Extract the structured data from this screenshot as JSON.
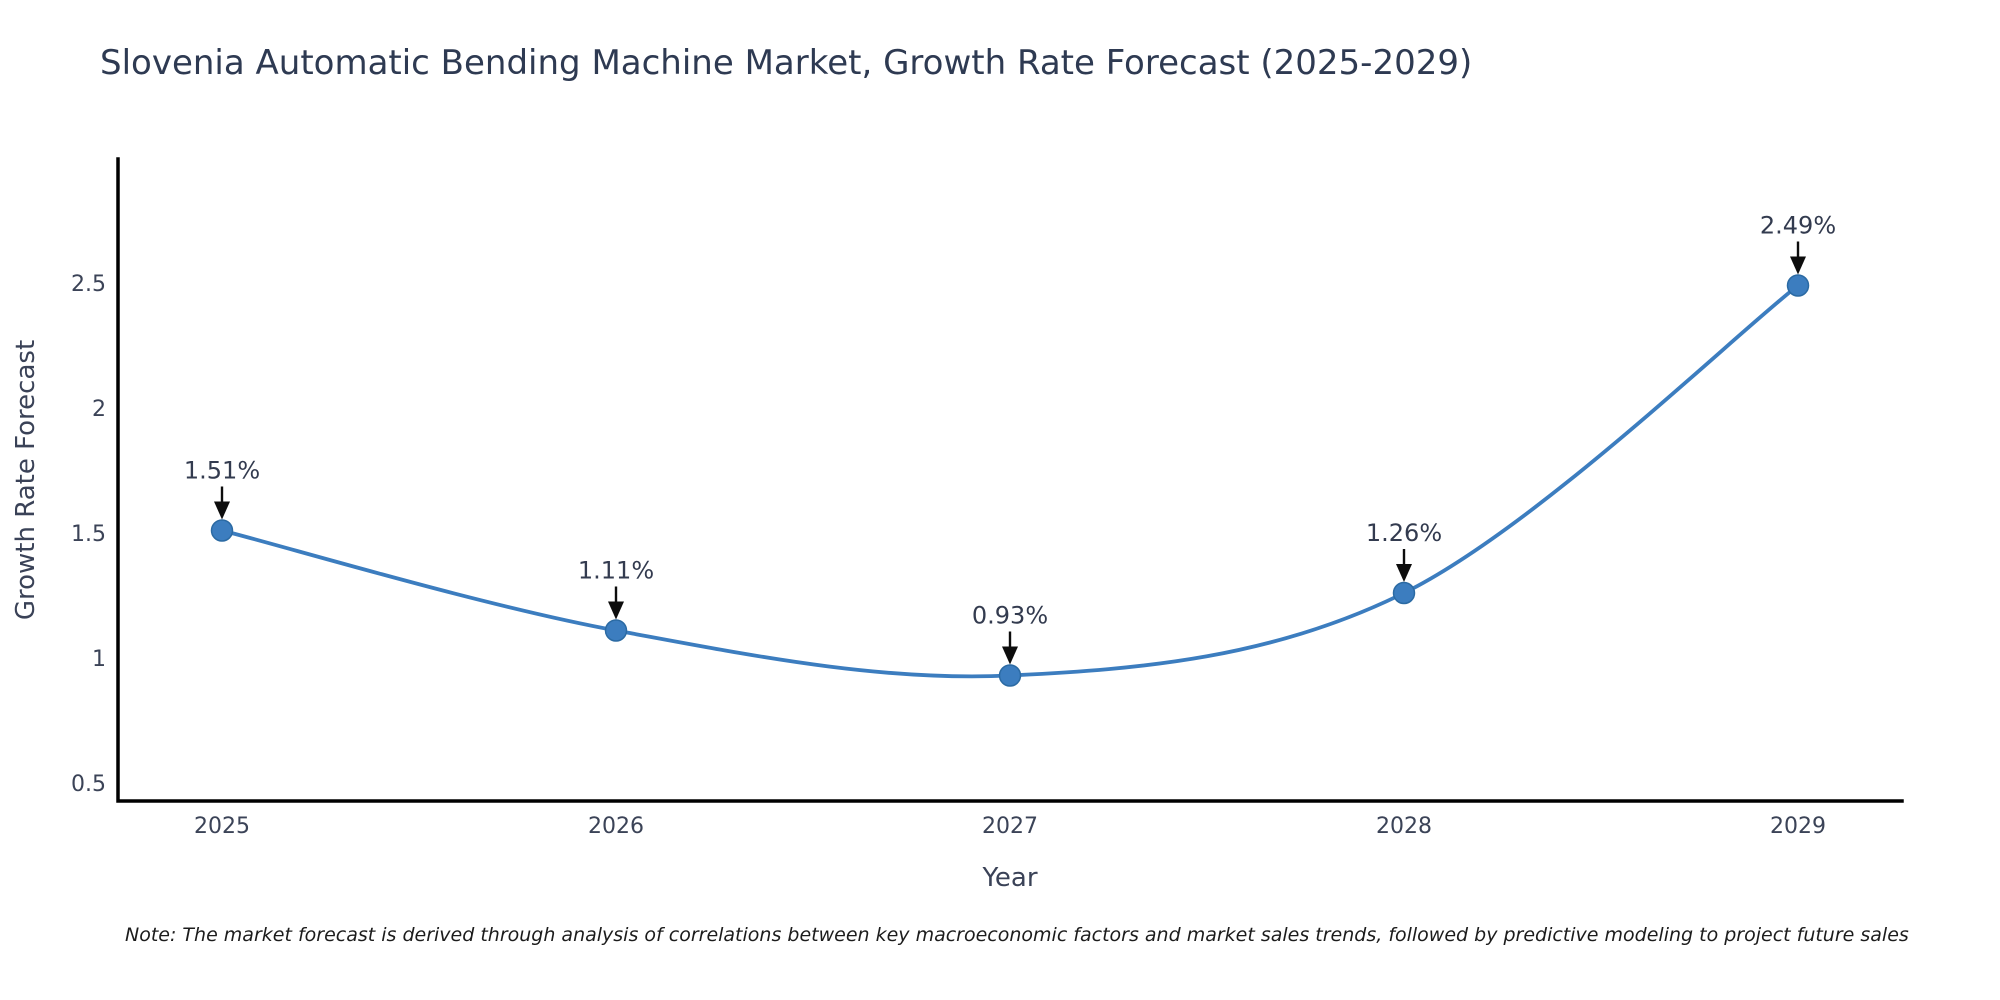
{
  "chart_data": {
    "type": "line",
    "title": "Slovenia Automatic Bending Machine Market, Growth Rate Forecast (2025-2029)",
    "categories": [
      "2025",
      "2026",
      "2027",
      "2028",
      "2029"
    ],
    "values": [
      1.51,
      1.11,
      0.93,
      1.26,
      2.49
    ],
    "annotations": [
      "1.51%",
      "1.11%",
      "0.93%",
      "1.26%",
      "2.49%"
    ],
    "xlabel": "Year",
    "ylabel": "Growth Rate Forecast",
    "yticks": [
      0.5,
      1,
      1.5,
      2,
      2.5
    ],
    "ytick_labels": [
      "0.5",
      "1",
      "1.5",
      "2",
      "2.5"
    ],
    "ylim": [
      0.43,
      3.0
    ],
    "grid": false,
    "legend": "none",
    "line_color": "#3c7dbf",
    "marker_color": "#3c7dbf",
    "marker_edge_color": "#2b6aa3",
    "arrow_color": "#0d0d0d",
    "axis_color": "#000000"
  },
  "note": "Note: The market forecast is derived through analysis of correlations between key macroeconomic factors and market sales trends, followed by predictive modeling to project future sales"
}
